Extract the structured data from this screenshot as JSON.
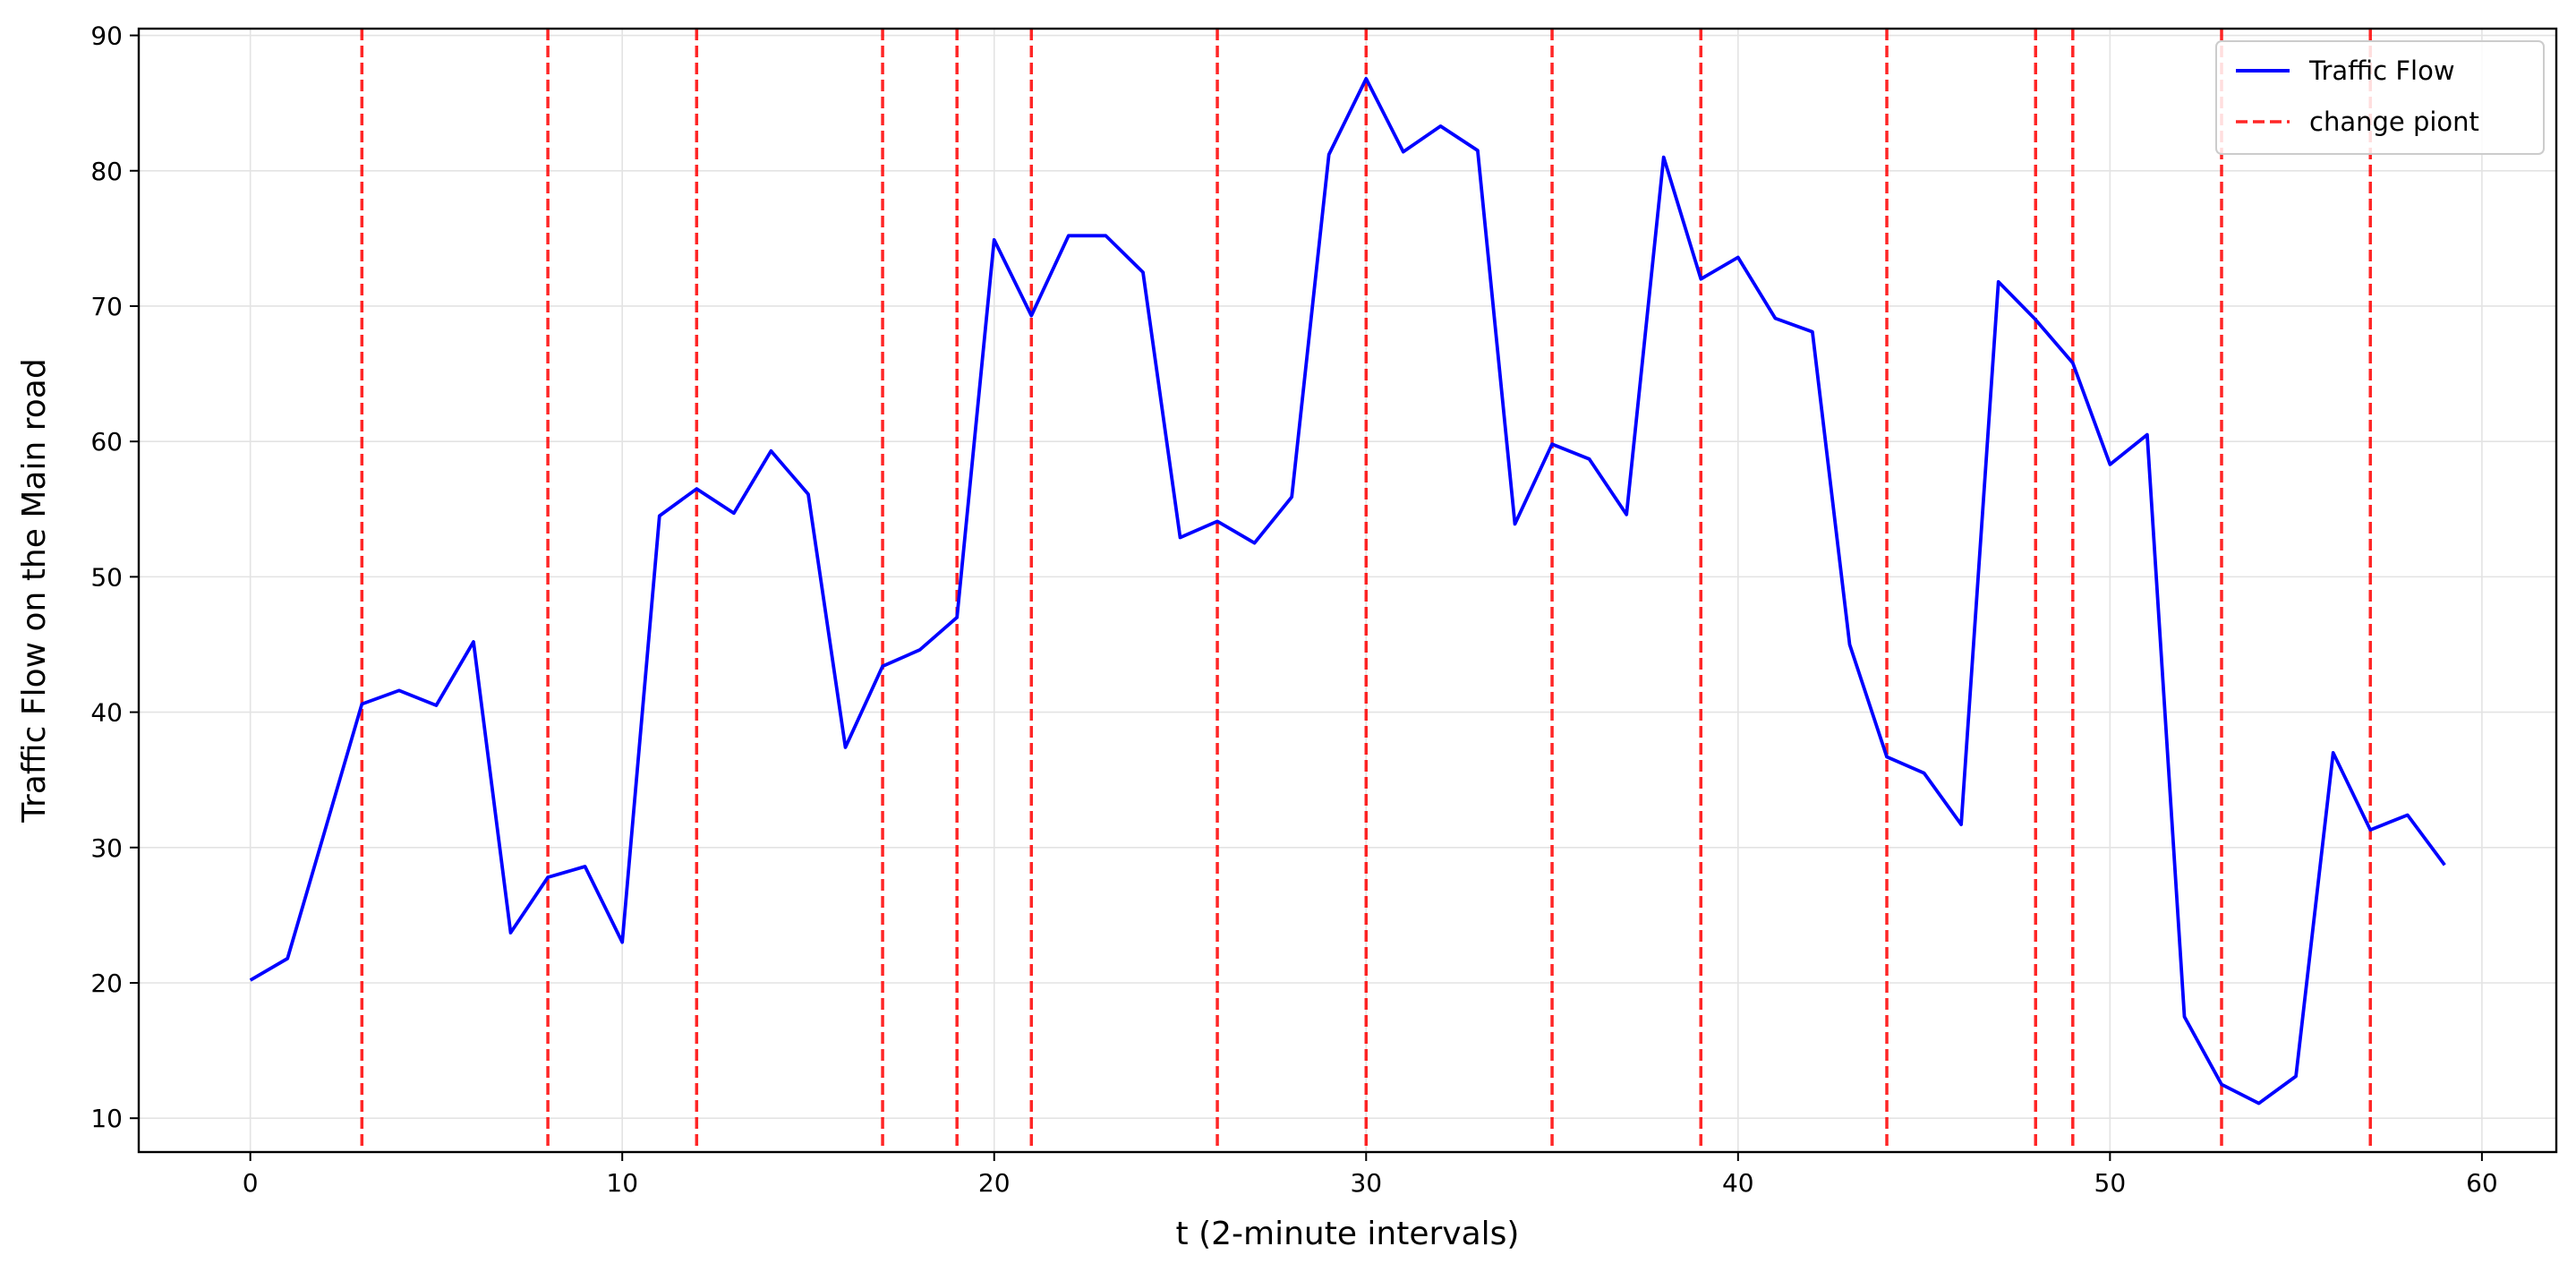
{
  "chart_data": {
    "type": "line",
    "title": "",
    "xlabel": "t  (2-minute intervals)",
    "ylabel": "Traffic Flow  on the Main road",
    "xlim": [
      -3,
      62
    ],
    "ylim": [
      7.5,
      90.5
    ],
    "xticks": [
      0,
      10,
      20,
      30,
      40,
      50,
      60
    ],
    "yticks": [
      10,
      20,
      30,
      40,
      50,
      60,
      70,
      80,
      90
    ],
    "grid": true,
    "legend_position": "top-right",
    "series": [
      {
        "name": "Traffic Flow",
        "color": "#0000ff",
        "style": "solid",
        "x": [
          0,
          1,
          2,
          3,
          4,
          5,
          6,
          7,
          8,
          9,
          10,
          11,
          12,
          13,
          14,
          15,
          16,
          17,
          18,
          19,
          20,
          21,
          22,
          23,
          24,
          25,
          26,
          27,
          28,
          29,
          30,
          31,
          32,
          33,
          34,
          35,
          36,
          37,
          38,
          39,
          40,
          41,
          42,
          43,
          44,
          45,
          46,
          47,
          48,
          49,
          50,
          51,
          52,
          53,
          54,
          55,
          56,
          57,
          58,
          59
        ],
        "y": [
          20.2,
          21.8,
          31.2,
          40.6,
          41.6,
          40.5,
          45.2,
          23.7,
          27.8,
          28.6,
          23.0,
          54.5,
          56.5,
          54.7,
          59.3,
          56.1,
          37.4,
          43.4,
          44.6,
          47.0,
          74.9,
          69.3,
          75.2,
          75.2,
          72.5,
          52.9,
          54.1,
          52.5,
          55.9,
          81.2,
          86.8,
          81.4,
          83.3,
          81.5,
          53.9,
          59.8,
          58.7,
          54.6,
          81.0,
          72.0,
          73.6,
          69.1,
          68.1,
          45.0,
          36.7,
          35.5,
          31.7,
          71.8,
          69.0,
          65.8,
          58.3,
          60.5,
          17.5,
          12.5,
          11.1,
          13.1,
          37.0,
          31.3,
          32.4,
          28.7
        ]
      }
    ],
    "vlines": {
      "name": "change piont",
      "color": "#ff0000",
      "style": "dashed",
      "x": [
        3,
        8,
        12,
        17,
        19,
        21,
        26,
        30,
        35,
        39,
        44,
        48,
        49,
        53,
        57
      ]
    }
  }
}
